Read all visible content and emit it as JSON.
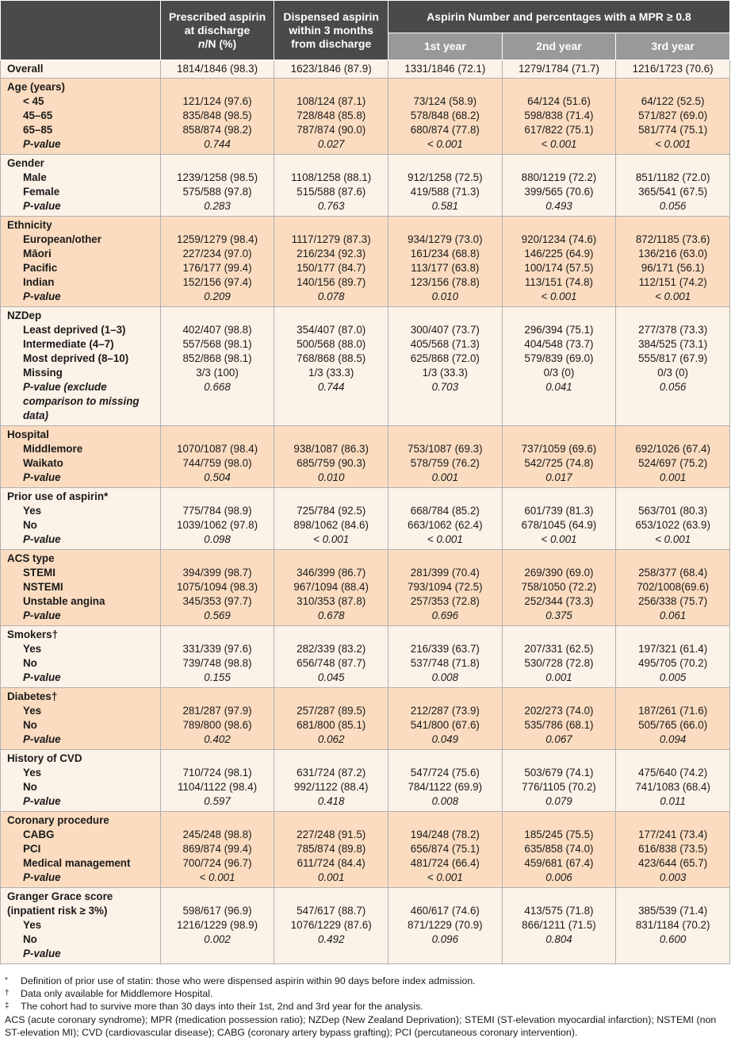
{
  "header": {
    "col1": "Prescribed aspirin at discharge",
    "col1_unit_n": "n",
    "col1_unit_rest": "/N (%)",
    "col2": "Dispensed aspirin within 3 months from discharge",
    "group": "Aspirin Number and percentages with a MPR ≥ 0.8",
    "years": [
      "1st year",
      "2nd year",
      "3rd year"
    ]
  },
  "overall": {
    "label": "Overall",
    "values": [
      "1814/1846 (98.3)",
      "1623/1846 (87.9)",
      "1331/1846 (72.1)",
      "1279/1784 (71.7)",
      "1216/1723 (70.6)"
    ]
  },
  "groups": [
    {
      "label": "Age (years)",
      "rows": [
        {
          "label": "< 45",
          "values": [
            "121/124 (97.6)",
            "108/124 (87.1)",
            "73/124 (58.9)",
            "64/124 (51.6)",
            "64/122 (52.5)"
          ]
        },
        {
          "label": "45–65",
          "values": [
            "835/848 (98.5)",
            "728/848 (85.8)",
            "578/848 (68.2)",
            "598/838 (71.4)",
            "571/827 (69.0)"
          ]
        },
        {
          "label": "65–85",
          "values": [
            "858/874 (98.2)",
            "787/874 (90.0)",
            "680/874 (77.8)",
            "617/822 (75.1)",
            "581/774 (75.1)"
          ]
        }
      ],
      "p_label": "P-value",
      "p_values": [
        "0.744",
        "0.027",
        "< 0.001",
        "< 0.001",
        "< 0.001"
      ]
    },
    {
      "label": "Gender",
      "rows": [
        {
          "label": "Male",
          "values": [
            "1239/1258 (98.5)",
            "1108/1258 (88.1)",
            "912/1258 (72.5)",
            "880/1219 (72.2)",
            "851/1182 (72.0)"
          ]
        },
        {
          "label": "Female",
          "values": [
            "575/588 (97.8)",
            "515/588 (87.6)",
            "419/588 (71.3)",
            "399/565 (70.6)",
            "365/541 (67.5)"
          ]
        }
      ],
      "p_label": "P-value",
      "p_values": [
        "0.283",
        "0.763",
        "0.581",
        "0.493",
        "0.056"
      ]
    },
    {
      "label": "Ethnicity",
      "rows": [
        {
          "label": "European/other",
          "values": [
            "1259/1279 (98.4)",
            "1117/1279 (87.3)",
            "934/1279 (73.0)",
            "920/1234 (74.6)",
            "872/1185 (73.6)"
          ]
        },
        {
          "label": "Māori",
          "values": [
            "227/234 (97.0)",
            "216/234 (92.3)",
            "161/234 (68.8)",
            "146/225 (64.9)",
            "136/216 (63.0)"
          ]
        },
        {
          "label": "Pacific",
          "values": [
            "176/177 (99.4)",
            "150/177 (84.7)",
            "113/177 (63.8)",
            "100/174 (57.5)",
            "96/171 (56.1)"
          ]
        },
        {
          "label": "Indian",
          "values": [
            "152/156 (97.4)",
            "140/156 (89.7)",
            "123/156 (78.8)",
            "113/151 (74.8)",
            "112/151 (74.2)"
          ]
        }
      ],
      "p_label": "P-value",
      "p_values": [
        "0.209",
        "0.078",
        "0.010",
        "< 0.001",
        "< 0.001"
      ]
    },
    {
      "label": "NZDep",
      "rows": [
        {
          "label": "Least deprived (1–3)",
          "values": [
            "402/407 (98.8)",
            "354/407 (87.0)",
            "300/407 (73.7)",
            "296/394 (75.1)",
            "277/378 (73.3)"
          ]
        },
        {
          "label": "Intermediate (4–7)",
          "values": [
            "557/568 (98.1)",
            "500/568 (88.0)",
            "405/568 (71.3)",
            "404/548 (73.7)",
            "384/525 (73.1)"
          ]
        },
        {
          "label": "Most deprived (8–10)",
          "values": [
            "852/868 (98.1)",
            "768/868 (88.5)",
            "625/868 (72.0)",
            "579/839 (69.0)",
            "555/817 (67.9)"
          ]
        },
        {
          "label": "Missing",
          "values": [
            "3/3 (100)",
            "1/3 (33.3)",
            "1/3 (33.3)",
            "0/3 (0)",
            "0/3 (0)"
          ]
        }
      ],
      "p_label": "P-value",
      "p_label_extra": " (exclude comparison to missing data)",
      "p_values": [
        "0.668",
        "0.744",
        "0.703",
        "0.041",
        "0.056"
      ]
    },
    {
      "label": "Hospital",
      "rows": [
        {
          "label": "Middlemore",
          "values": [
            "1070/1087 (98.4)",
            "938/1087 (86.3)",
            "753/1087 (69.3)",
            "737/1059 (69.6)",
            "692/1026 (67.4)"
          ]
        },
        {
          "label": "Waikato",
          "values": [
            "744/759 (98.0)",
            "685/759 (90.3)",
            "578/759 (76.2)",
            "542/725 (74.8)",
            "524/697 (75.2)"
          ]
        }
      ],
      "p_label": "P-value",
      "p_values": [
        "0.504",
        "0.010",
        "0.001",
        "0.017",
        "0.001"
      ]
    },
    {
      "label": "Prior use of aspirin*",
      "rows": [
        {
          "label": "Yes",
          "values": [
            "775/784 (98.9)",
            "725/784 (92.5)",
            "668/784 (85.2)",
            "601/739 (81.3)",
            "563/701 (80.3)"
          ]
        },
        {
          "label": "No",
          "values": [
            "1039/1062 (97.8)",
            "898/1062 (84.6)",
            "663/1062 (62.4)",
            "678/1045 (64.9)",
            "653/1022 (63.9)"
          ]
        }
      ],
      "p_label": "P-value",
      "p_values": [
        "0.098",
        "< 0.001",
        "< 0.001",
        "< 0.001",
        "< 0.001"
      ]
    },
    {
      "label": "ACS type",
      "rows": [
        {
          "label": "STEMI",
          "values": [
            "394/399 (98.7)",
            "346/399 (86.7)",
            "281/399 (70.4)",
            "269/390 (69.0)",
            "258/377 (68.4)"
          ]
        },
        {
          "label": "NSTEMI",
          "values": [
            "1075/1094 (98.3)",
            "967/1094 (88.4)",
            "793/1094 (72.5)",
            "758/1050 (72.2)",
            "702/1008(69.6)"
          ]
        },
        {
          "label": "Unstable angina",
          "values": [
            "345/353 (97.7)",
            "310/353 (87.8)",
            "257/353 (72.8)",
            "252/344 (73.3)",
            "256/338 (75.7)"
          ]
        }
      ],
      "p_label": "P-value",
      "p_values": [
        "0.569",
        "0.678",
        "0.696",
        "0.375",
        "0.061"
      ]
    },
    {
      "label": "Smokers†",
      "rows": [
        {
          "label": "Yes",
          "values": [
            "331/339 (97.6)",
            "282/339 (83.2)",
            "216/339 (63.7)",
            "207/331 (62.5)",
            "197/321 (61.4)"
          ]
        },
        {
          "label": "No",
          "values": [
            "739/748 (98.8)",
            "656/748 (87.7)",
            "537/748 (71.8)",
            "530/728 (72.8)",
            "495/705 (70.2)"
          ]
        }
      ],
      "p_label": "P-value",
      "p_values": [
        "0.155",
        "0.045",
        "0.008",
        "0.001",
        "0.005"
      ]
    },
    {
      "label": "Diabetes†",
      "rows": [
        {
          "label": "Yes",
          "values": [
            "281/287 (97.9)",
            "257/287 (89.5)",
            "212/287 (73.9)",
            "202/273 (74.0)",
            "187/261 (71.6)"
          ]
        },
        {
          "label": "No",
          "values": [
            "789/800 (98.6)",
            "681/800 (85.1)",
            "541/800 (67.6)",
            "535/786 (68.1)",
            "505/765 (66.0)"
          ]
        }
      ],
      "p_label": "P-value",
      "p_values": [
        "0.402",
        "0.062",
        "0.049",
        "0.067",
        "0.094"
      ]
    },
    {
      "label": "History of CVD",
      "rows": [
        {
          "label": "Yes",
          "values": [
            "710/724 (98.1)",
            "631/724 (87.2)",
            "547/724 (75.6)",
            "503/679 (74.1)",
            "475/640 (74.2)"
          ]
        },
        {
          "label": "No",
          "values": [
            "1104/1122 (98.4)",
            "992/1122 (88.4)",
            "784/1122 (69.9)",
            "776/1105 (70.2)",
            "741/1083 (68.4)"
          ]
        }
      ],
      "p_label": "P-value",
      "p_values": [
        "0.597",
        "0.418",
        "0.008",
        "0.079",
        "0.011"
      ]
    },
    {
      "label": "Coronary procedure",
      "rows": [
        {
          "label": "CABG",
          "values": [
            "245/248 (98.8)",
            "227/248 (91.5)",
            "194/248 (78.2)",
            "185/245 (75.5)",
            "177/241 (73.4)"
          ]
        },
        {
          "label": "PCI",
          "values": [
            "869/874 (99.4)",
            "785/874 (89.8)",
            "656/874 (75.1)",
            "635/858 (74.0)",
            "616/838 (73.5)"
          ]
        },
        {
          "label": "Medical management",
          "values": [
            "700/724 (96.7)",
            "611/724 (84.4)",
            "481/724 (66.4)",
            "459/681 (67.4)",
            "423/644 (65.7)"
          ]
        }
      ],
      "p_label": "P-value",
      "p_values": [
        "< 0.001",
        "0.001",
        "< 0.001",
        "0.006",
        "0.003"
      ]
    },
    {
      "label": "Granger Grace score (inpatient risk ≥ 3%)",
      "rows": [
        {
          "label": "Yes",
          "values": [
            "598/617 (96.9)",
            "547/617 (88.7)",
            "460/617 (74.6)",
            "413/575 (71.8)",
            "385/539 (71.4)"
          ]
        },
        {
          "label": "No",
          "values": [
            "1216/1229 (98.9)",
            "1076/1229 (87.6)",
            "871/1229 (70.9)",
            "866/1211 (71.5)",
            "831/1184 (70.2)"
          ]
        }
      ],
      "p_label": "P-value",
      "p_values": [
        "0.002",
        "0.492",
        "0.096",
        "0.804",
        "0.600"
      ]
    }
  ],
  "footnotes": [
    {
      "mark": "*",
      "text": "Definition of prior use of statin:  those who were dispensed aspirin within 90 days before index admission."
    },
    {
      "mark": "†",
      "text": "Data only available for Middlemore Hospital."
    },
    {
      "mark": "‡",
      "text": "The cohort had to survive more than 30 days into their 1st, 2nd and 3rd year for the analysis."
    }
  ],
  "abbreviations": "ACS (acute coronary syndrome); MPR (medication possession ratio); NZDep (New Zealand Deprivation); STEMI (ST-elevation myocardial infarction); NSTEMI (non ST-elevation MI); CVD (cardiovascular disease); CABG (coronary artery bypass grafting); PCI (percutaneous coronary intervention)."
}
